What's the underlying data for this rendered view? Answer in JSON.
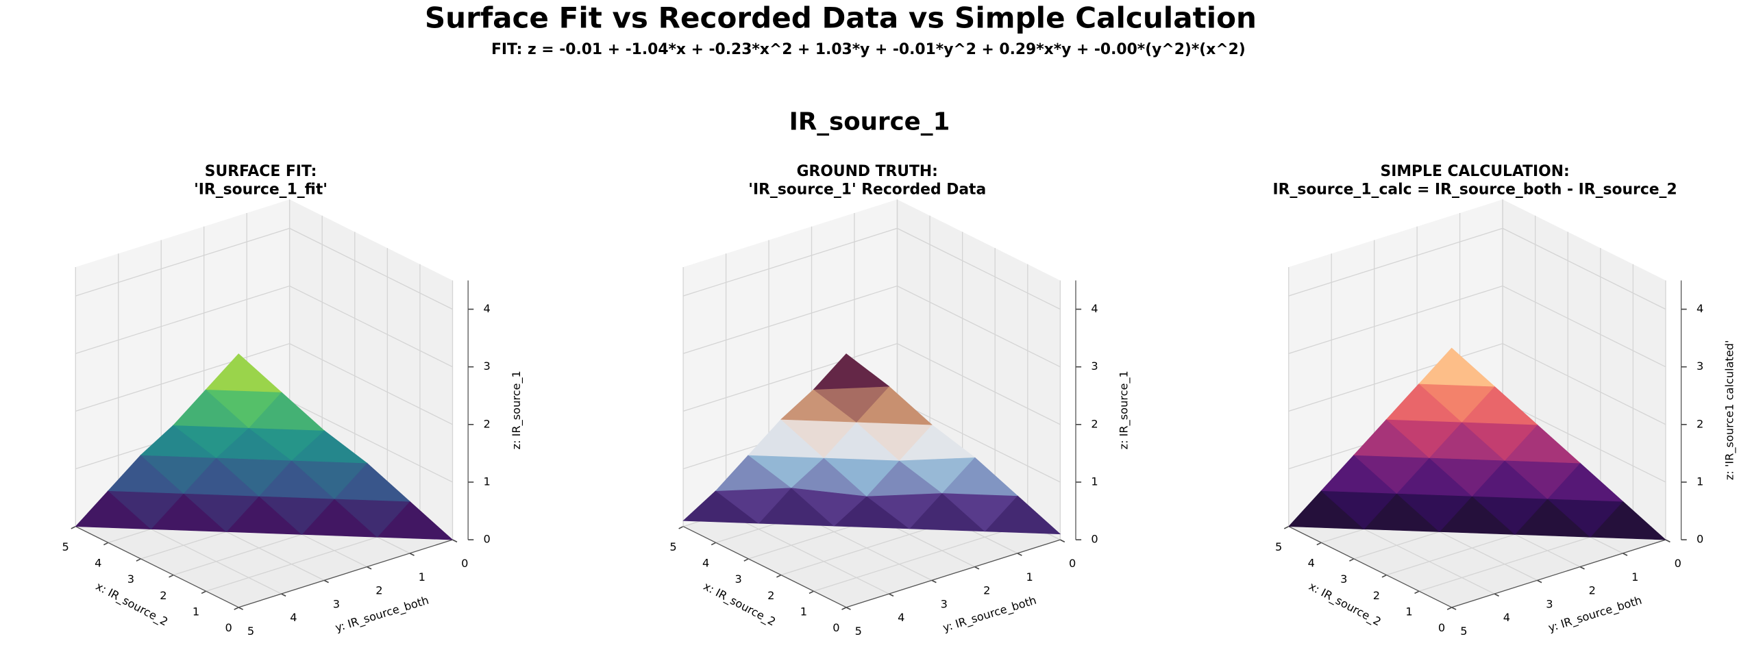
{
  "title": "Surface Fit vs Recorded Data vs Simple Calculation",
  "subtitle": "FIT: z = -0.01 + -1.04*x + -0.23*x^2 + 1.03*y + -0.01*y^2 + 0.29*x*y + -0.00*(y^2)*(x^2)",
  "group_title": "IR_source_1",
  "chart_data": [
    {
      "type": "surface3d",
      "title": [
        "SURFACE FIT:",
        "'IR_source_1_fit'"
      ],
      "xlabel": "x: IR_source_2",
      "ylabel": "y: IR_source_both",
      "zlabel": "z: IR_source_1",
      "colormap": "viridis",
      "x": [
        0,
        0,
        0,
        0,
        0,
        0,
        1,
        1,
        1,
        1,
        1,
        2,
        2,
        2,
        2,
        3,
        3,
        3,
        4,
        4,
        5
      ],
      "y": [
        0,
        1,
        2,
        3,
        4,
        5,
        1,
        2,
        3,
        4,
        5,
        2,
        3,
        4,
        5,
        3,
        4,
        5,
        4,
        5,
        5
      ],
      "z": [
        0,
        0.9,
        1.8,
        2.6,
        3.5,
        4.4,
        0,
        0.9,
        1.8,
        2.6,
        3.5,
        0,
        0.9,
        1.8,
        2.6,
        0,
        0.9,
        1.8,
        0,
        0.9,
        0
      ],
      "xlim": [
        0,
        5
      ],
      "ylim": [
        0,
        5
      ],
      "zlim": [
        0,
        4.5
      ],
      "xticks": [
        0,
        1,
        2,
        3,
        4,
        5
      ],
      "yticks": [
        0,
        1,
        2,
        3,
        4,
        5
      ],
      "zticks": [
        0,
        1,
        2,
        3,
        4
      ],
      "grid": true
    },
    {
      "type": "surface3d",
      "title": [
        "GROUND TRUTH:",
        "'IR_source_1' Recorded Data"
      ],
      "xlabel": "x: IR_source_2",
      "ylabel": "y: IR_source_both",
      "zlabel": "z: IR_source_1",
      "colormap": "twilight",
      "x": [
        0,
        0,
        0,
        0,
        0,
        0,
        1,
        1,
        1,
        1,
        1,
        2,
        2,
        2,
        2,
        3,
        3,
        3,
        4,
        4,
        5
      ],
      "y": [
        0,
        1,
        2,
        3,
        4,
        5,
        1,
        2,
        3,
        4,
        5,
        2,
        3,
        4,
        5,
        3,
        4,
        5,
        4,
        5,
        5
      ],
      "z": [
        0.1,
        1.0,
        1.9,
        2.7,
        3.6,
        4.4,
        0.1,
        1.0,
        1.8,
        2.7,
        3.5,
        0.1,
        0.9,
        1.8,
        2.7,
        0.1,
        1.0,
        1.8,
        0.1,
        0.9,
        0.1
      ],
      "xlim": [
        0,
        5
      ],
      "ylim": [
        0,
        5
      ],
      "zlim": [
        0,
        4.5
      ],
      "xticks": [
        0,
        1,
        2,
        3,
        4,
        5
      ],
      "yticks": [
        0,
        1,
        2,
        3,
        4,
        5
      ],
      "zticks": [
        0,
        1,
        2,
        3,
        4
      ],
      "grid": true
    },
    {
      "type": "surface3d",
      "title": [
        "SIMPLE CALCULATION:",
        "IR_source_1_calc = IR_source_both - IR_source_2"
      ],
      "xlabel": "x: IR_source_2",
      "ylabel": "y: IR_source_both",
      "zlabel": "z: 'IR_source1 calculated'",
      "colormap": "magma",
      "x": [
        0,
        0,
        0,
        0,
        0,
        0,
        1,
        1,
        1,
        1,
        1,
        2,
        2,
        2,
        2,
        3,
        3,
        3,
        4,
        4,
        5
      ],
      "y": [
        0,
        1,
        2,
        3,
        4,
        5,
        1,
        2,
        3,
        4,
        5,
        2,
        3,
        4,
        5,
        3,
        4,
        5,
        4,
        5,
        5
      ],
      "z": [
        0,
        0.9,
        1.8,
        2.7,
        3.6,
        4.5,
        0,
        0.9,
        1.8,
        2.7,
        3.6,
        0,
        0.9,
        1.8,
        2.7,
        0,
        0.9,
        1.8,
        0,
        0.9,
        0
      ],
      "xlim": [
        0,
        5
      ],
      "ylim": [
        0,
        5
      ],
      "zlim": [
        0,
        4.5
      ],
      "xticks": [
        0,
        1,
        2,
        3,
        4,
        5
      ],
      "yticks": [
        0,
        1,
        2,
        3,
        4,
        5
      ],
      "zticks": [
        0,
        1,
        2,
        3,
        4
      ],
      "grid": true
    }
  ]
}
